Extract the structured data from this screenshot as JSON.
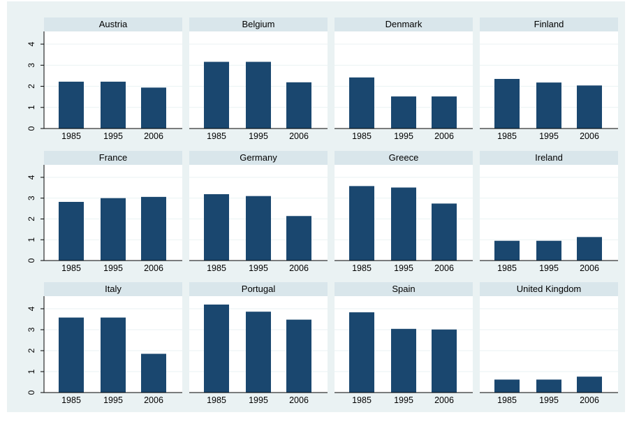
{
  "chart_data": {
    "type": "bar",
    "layout": "small-multiples 3x4",
    "grid": true,
    "ylim": [
      0,
      4.6
    ],
    "yticks": [
      0,
      1,
      2,
      3,
      4
    ],
    "categories": [
      "1985",
      "1995",
      "2006"
    ],
    "colors": {
      "bar": "#1a476f",
      "panel_header": "#d9e6eb",
      "outer_background": "#eaf2f3",
      "gridline": "#eaf2f3"
    },
    "panels": [
      {
        "title": "Austria",
        "values": [
          2.22,
          2.22,
          1.94
        ]
      },
      {
        "title": "Belgium",
        "values": [
          3.16,
          3.16,
          2.19
        ]
      },
      {
        "title": "Denmark",
        "values": [
          2.42,
          1.52,
          1.52
        ]
      },
      {
        "title": "Finland",
        "values": [
          2.35,
          2.18,
          2.04
        ]
      },
      {
        "title": "France",
        "values": [
          2.82,
          3.0,
          3.06
        ]
      },
      {
        "title": "Germany",
        "values": [
          3.19,
          3.1,
          2.14
        ]
      },
      {
        "title": "Greece",
        "values": [
          3.58,
          3.51,
          2.74
        ]
      },
      {
        "title": "Ireland",
        "values": [
          0.95,
          0.95,
          1.13
        ]
      },
      {
        "title": "Italy",
        "values": [
          3.58,
          3.58,
          1.85
        ]
      },
      {
        "title": "Portugal",
        "values": [
          4.2,
          3.86,
          3.48
        ]
      },
      {
        "title": "Spain",
        "values": [
          3.83,
          3.04,
          3.01
        ]
      },
      {
        "title": "United Kingdom",
        "values": [
          0.62,
          0.62,
          0.76
        ]
      }
    ]
  }
}
